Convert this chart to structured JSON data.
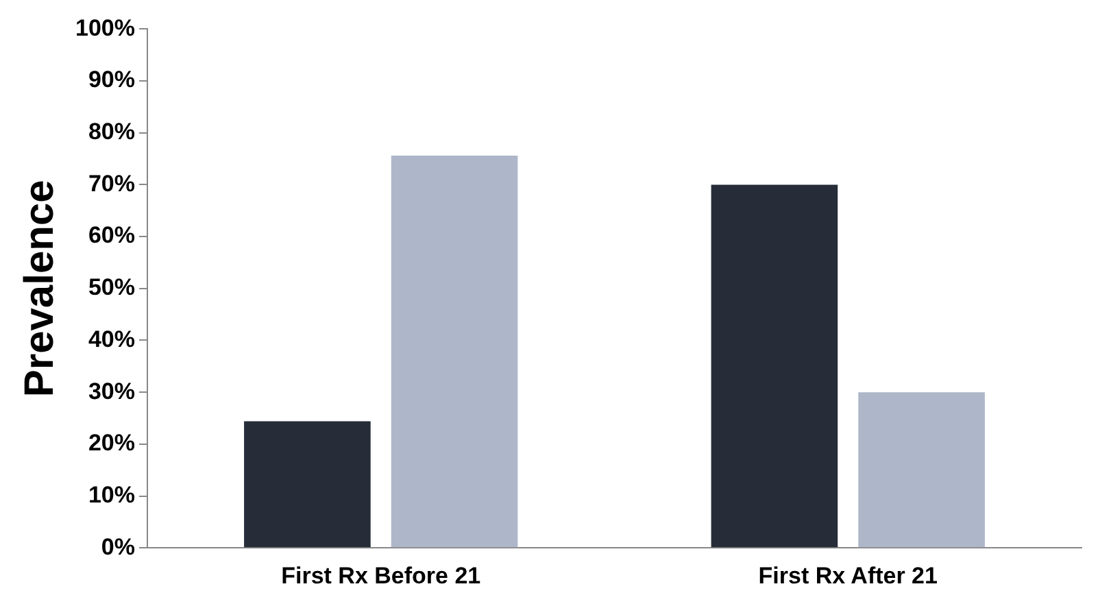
{
  "chart_data": {
    "type": "bar",
    "ylabel": "Prevalence",
    "categories": [
      "First Rx Before 21",
      "First Rx After 21"
    ],
    "series": [
      {
        "color": "#262c38",
        "values": [
          24.4,
          70
        ]
      },
      {
        "color": "#adb7c9",
        "values": [
          75.6,
          30
        ]
      }
    ],
    "ylim": [
      0,
      100
    ],
    "yticks": [
      {
        "value": 0,
        "label": "0%"
      },
      {
        "value": 10,
        "label": "10%"
      },
      {
        "value": 20,
        "label": "20%"
      },
      {
        "value": 30,
        "label": "30%"
      },
      {
        "value": 40,
        "label": "40%"
      },
      {
        "value": 50,
        "label": "50%"
      },
      {
        "value": 60,
        "label": "60%"
      },
      {
        "value": 70,
        "label": "70%"
      },
      {
        "value": 80,
        "label": "80%"
      },
      {
        "value": 90,
        "label": "90%"
      },
      {
        "value": 100,
        "label": "100%"
      }
    ],
    "grid": false,
    "legend": false
  }
}
